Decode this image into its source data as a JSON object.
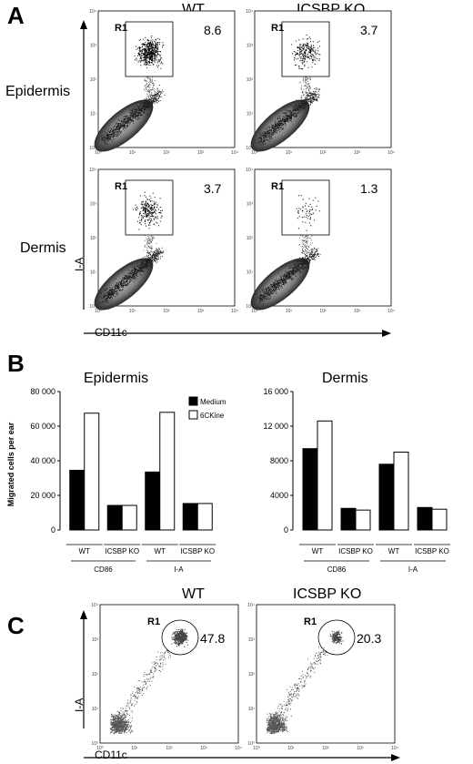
{
  "panel_a": {
    "letter": "A",
    "columns": [
      "WT",
      "ICSBP KO"
    ],
    "rows": [
      "Epidermis",
      "Dermis"
    ],
    "x_axis": "CD11c",
    "y_axis": "I-A",
    "x_ticks": [
      "10⁰",
      "10¹",
      "10²",
      "10³",
      "10⁴"
    ],
    "y_ticks": [
      "10⁰",
      "10¹",
      "10²",
      "10³",
      "10⁴"
    ],
    "gate": "R1",
    "percentages": [
      [
        "8.6",
        "3.7"
      ],
      [
        "3.7",
        "1.3"
      ]
    ]
  },
  "panel_b": {
    "letter": "B",
    "ylabel": "Migrated cells per ear",
    "legend": [
      "Medium",
      "6CKine"
    ],
    "colors": {
      "medium": "#000000",
      "ckine": "#ffffff"
    },
    "sub_labels": [
      "WT",
      "ICSBP KO",
      "WT",
      "ICSBP KO"
    ],
    "group_labels": [
      "CD86",
      "I-A"
    ]
  },
  "panel_c": {
    "letter": "C",
    "columns": [
      "WT",
      "ICSBP KO"
    ],
    "x_axis": "CD11c",
    "y_axis": "I-A",
    "x_ticks": [
      "10⁰",
      "10¹",
      "10²",
      "10³",
      "10⁴"
    ],
    "y_ticks": [
      "10⁰",
      "10¹",
      "10²",
      "10³",
      "10⁴"
    ],
    "gate": "R1",
    "percentages": [
      "47.8",
      "20.3"
    ]
  },
  "chart_data": [
    {
      "type": "bar",
      "title": "Epidermis",
      "ylabel": "Migrated cells per ear",
      "categories": [
        "WT",
        "ICSBP KO",
        "WT",
        "ICSBP KO"
      ],
      "groups": [
        "CD86",
        "CD86",
        "I-A",
        "I-A"
      ],
      "series": [
        {
          "name": "Medium",
          "values": [
            34500,
            14200,
            33500,
            15300
          ]
        },
        {
          "name": "6CKine",
          "values": [
            67500,
            14200,
            68000,
            15300
          ]
        }
      ],
      "ylim": [
        0,
        80000
      ],
      "yticks": [
        0,
        20000,
        40000,
        60000,
        80000
      ],
      "ytick_labels": [
        "0",
        "20 000",
        "40 000",
        "60 000",
        "80 000"
      ],
      "legend": "top-right"
    },
    {
      "type": "bar",
      "title": "Dermis",
      "categories": [
        "WT",
        "ICSBP KO",
        "WT",
        "ICSBP KO"
      ],
      "groups": [
        "CD86",
        "CD86",
        "I-A",
        "I-A"
      ],
      "series": [
        {
          "name": "Medium",
          "values": [
            9400,
            2500,
            7600,
            2600
          ]
        },
        {
          "name": "6CKine",
          "values": [
            12600,
            2300,
            9000,
            2400
          ]
        }
      ],
      "ylim": [
        0,
        16000
      ],
      "yticks": [
        0,
        4000,
        8000,
        12000,
        16000
      ],
      "ytick_labels": [
        "0",
        "4000",
        "8000",
        "12 000",
        "16 000"
      ]
    }
  ]
}
